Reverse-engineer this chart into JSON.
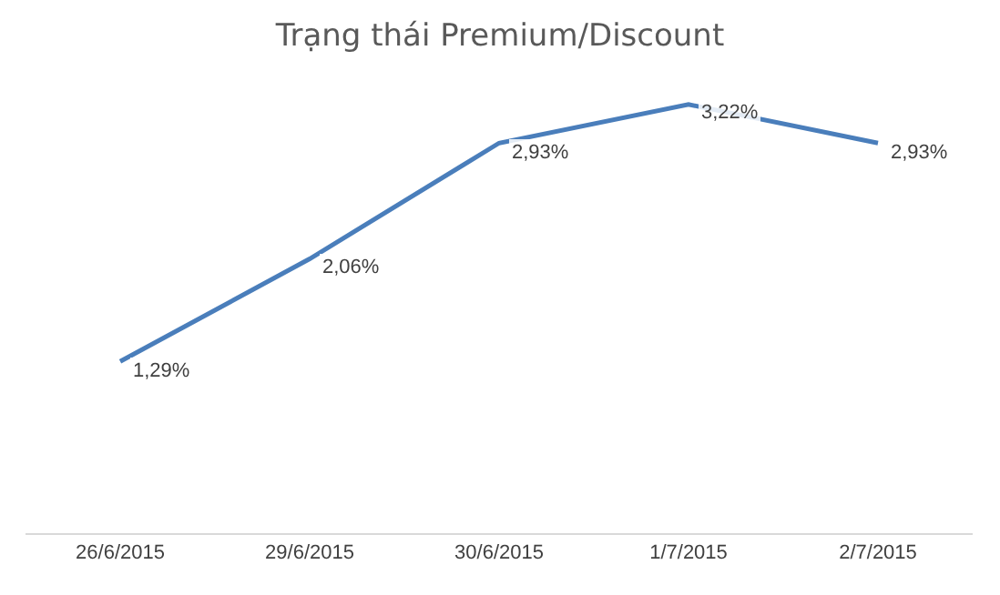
{
  "chart_data": {
    "type": "line",
    "title": "Trạng thái Premium/Discount",
    "categories": [
      "26/6/2015",
      "29/6/2015",
      "30/6/2015",
      "1/7/2015",
      "2/7/2015"
    ],
    "series": [
      {
        "color": "#4a7ebb",
        "values": [
          1.29,
          2.06,
          2.93,
          3.22,
          2.93
        ],
        "value_labels": [
          "1,29%",
          "2,06%",
          "2,93%",
          "3,22%",
          "2,93%"
        ]
      }
    ],
    "tick_labels": "x"
  }
}
